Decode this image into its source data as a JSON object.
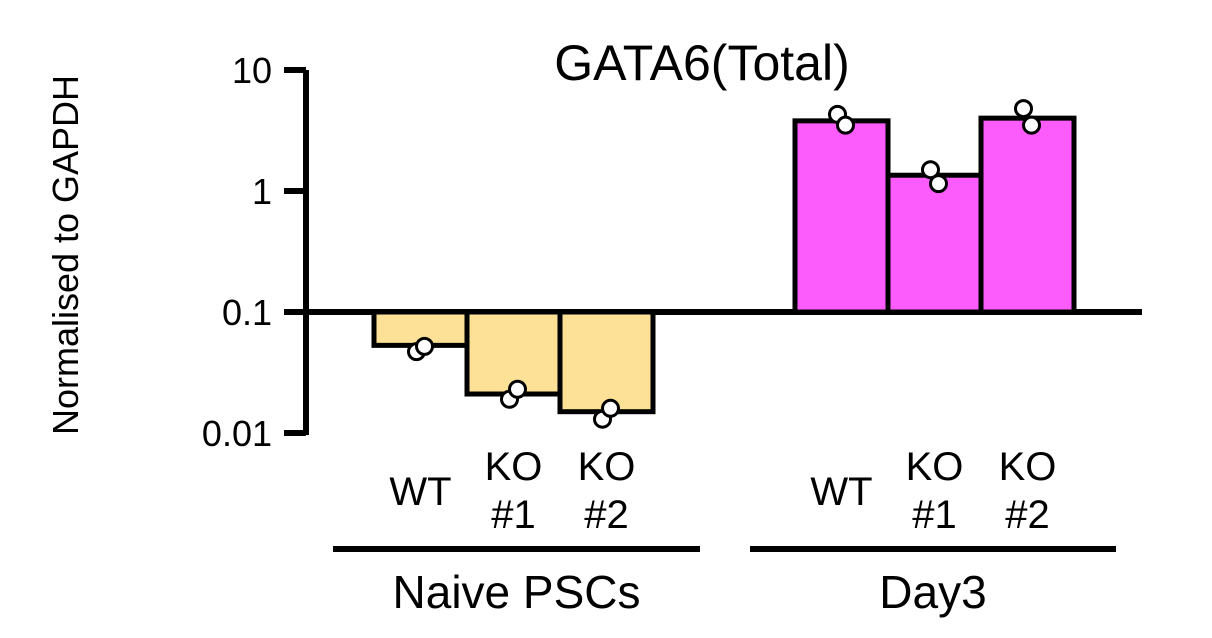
{
  "chart_data": {
    "type": "bar",
    "title": "GATA6(Total)",
    "ylabel": "Normalised to GAPDH",
    "xlabel": "",
    "yscale": "log",
    "ylim": [
      0.01,
      10
    ],
    "baseline": 0.1,
    "yticks": [
      "10",
      "1",
      "0.1",
      "0.01"
    ],
    "groups": [
      {
        "label": "Naive PSCs",
        "color": "#fce196",
        "bars": [
          {
            "label_line1": "WT",
            "label_line2": "",
            "value": 0.053,
            "points": [
              0.047,
              0.052
            ]
          },
          {
            "label_line1": "KO",
            "label_line2": "#1",
            "value": 0.021,
            "points": [
              0.019,
              0.023
            ]
          },
          {
            "label_line1": "KO",
            "label_line2": "#2",
            "value": 0.015,
            "points": [
              0.013,
              0.016
            ]
          }
        ]
      },
      {
        "label": "Day3",
        "color": "#fc5cfc",
        "bars": [
          {
            "label_line1": "WT",
            "label_line2": "",
            "value": 3.8,
            "points": [
              4.3,
              3.5
            ]
          },
          {
            "label_line1": "KO",
            "label_line2": "#1",
            "value": 1.35,
            "points": [
              1.5,
              1.15
            ]
          },
          {
            "label_line1": "KO",
            "label_line2": "#2",
            "value": 4.0,
            "points": [
              4.8,
              3.5
            ]
          }
        ]
      }
    ]
  }
}
